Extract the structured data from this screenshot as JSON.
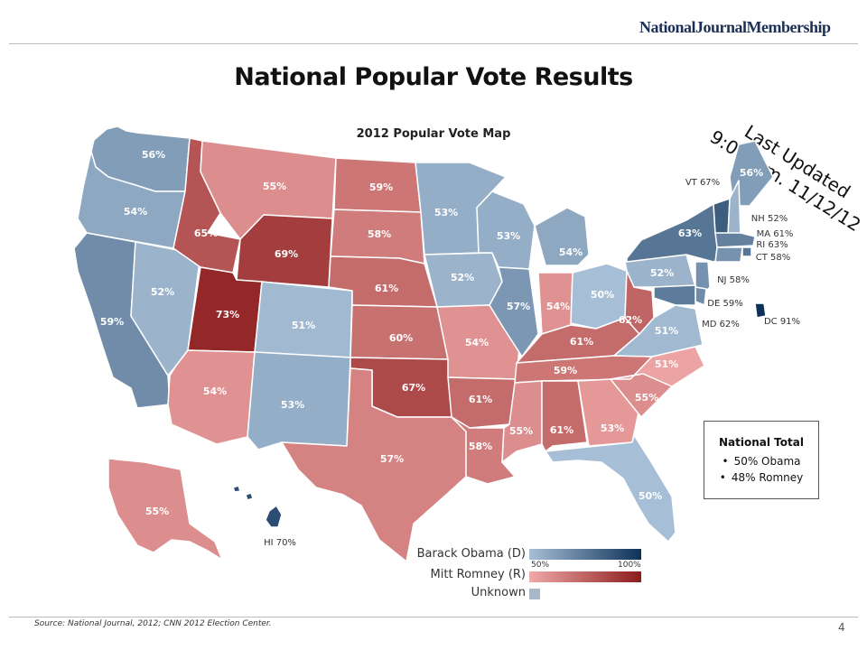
{
  "brand": "NationalJournalMembership",
  "title": "National Popular Vote Results",
  "subtitle": "2012 Popular Vote Map",
  "last_updated": {
    "line1": "Last Updated",
    "line2": "9:00 a.m. 11/12/12"
  },
  "national_total": {
    "heading": "National Total",
    "items": [
      "50% Obama",
      "48% Romney"
    ]
  },
  "legend": {
    "obama": "Barack Obama (D)",
    "romney": "Mitt Romney (R)",
    "unknown": "Unknown",
    "scale_min": "50%",
    "scale_max": "100%"
  },
  "colors": {
    "dem_light": "#a7bfd6",
    "dem_dark": "#0d3158",
    "rep_light": "#f0a9a9",
    "rep_dark": "#8c1c1c",
    "unknown": "#a9b8c9"
  },
  "states": [
    {
      "id": "WA",
      "party": "D",
      "pct": 56,
      "label": "56%"
    },
    {
      "id": "OR",
      "party": "D",
      "pct": 54,
      "label": "54%"
    },
    {
      "id": "CA",
      "party": "D",
      "pct": 59,
      "label": "59%"
    },
    {
      "id": "NV",
      "party": "D",
      "pct": 52,
      "label": "52%"
    },
    {
      "id": "ID",
      "party": "R",
      "pct": 65,
      "label": "65%"
    },
    {
      "id": "MT",
      "party": "R",
      "pct": 55,
      "label": "55%"
    },
    {
      "id": "WY",
      "party": "R",
      "pct": 69,
      "label": "69%"
    },
    {
      "id": "UT",
      "party": "R",
      "pct": 73,
      "label": "73%"
    },
    {
      "id": "AZ",
      "party": "R",
      "pct": 54,
      "label": "54%"
    },
    {
      "id": "CO",
      "party": "D",
      "pct": 51,
      "label": "51%"
    },
    {
      "id": "NM",
      "party": "D",
      "pct": 53,
      "label": "53%"
    },
    {
      "id": "ND",
      "party": "R",
      "pct": 59,
      "label": "59%"
    },
    {
      "id": "SD",
      "party": "R",
      "pct": 58,
      "label": "58%"
    },
    {
      "id": "NE",
      "party": "R",
      "pct": 61,
      "label": "61%"
    },
    {
      "id": "KS",
      "party": "R",
      "pct": 60,
      "label": "60%"
    },
    {
      "id": "OK",
      "party": "R",
      "pct": 67,
      "label": "67%"
    },
    {
      "id": "TX",
      "party": "R",
      "pct": 57,
      "label": "57%"
    },
    {
      "id": "MN",
      "party": "D",
      "pct": 53,
      "label": "53%"
    },
    {
      "id": "IA",
      "party": "D",
      "pct": 52,
      "label": "52%"
    },
    {
      "id": "MO",
      "party": "R",
      "pct": 54,
      "label": "54%"
    },
    {
      "id": "AR",
      "party": "R",
      "pct": 61,
      "label": "61%"
    },
    {
      "id": "LA",
      "party": "R",
      "pct": 58,
      "label": "58%"
    },
    {
      "id": "WI",
      "party": "D",
      "pct": 53,
      "label": "53%"
    },
    {
      "id": "IL",
      "party": "D",
      "pct": 57,
      "label": "57%"
    },
    {
      "id": "MI",
      "party": "D",
      "pct": 54,
      "label": "54%"
    },
    {
      "id": "IN",
      "party": "R",
      "pct": 54,
      "label": "54%"
    },
    {
      "id": "OH",
      "party": "D",
      "pct": 50,
      "label": "50%"
    },
    {
      "id": "KY",
      "party": "R",
      "pct": 61,
      "label": "61%"
    },
    {
      "id": "TN",
      "party": "R",
      "pct": 59,
      "label": "59%"
    },
    {
      "id": "MS",
      "party": "R",
      "pct": 55,
      "label": "55%"
    },
    {
      "id": "AL",
      "party": "R",
      "pct": 61,
      "label": "61%"
    },
    {
      "id": "GA",
      "party": "R",
      "pct": 53,
      "label": "53%"
    },
    {
      "id": "FL",
      "party": "D",
      "pct": 50,
      "label": "50%"
    },
    {
      "id": "SC",
      "party": "R",
      "pct": 55,
      "label": "55%"
    },
    {
      "id": "NC",
      "party": "R",
      "pct": 51,
      "label": "51%"
    },
    {
      "id": "VA",
      "party": "D",
      "pct": 51,
      "label": "51%"
    },
    {
      "id": "WV",
      "party": "R",
      "pct": 62,
      "label": "62%"
    },
    {
      "id": "PA",
      "party": "D",
      "pct": 52,
      "label": "52%"
    },
    {
      "id": "NY",
      "party": "D",
      "pct": 63,
      "label": "63%"
    },
    {
      "id": "ME",
      "party": "D",
      "pct": 56,
      "label": "56%"
    },
    {
      "id": "AK",
      "party": "R",
      "pct": 55,
      "label": "55%"
    },
    {
      "id": "HI",
      "party": "D",
      "pct": 70,
      "label": "HI 70%"
    },
    {
      "id": "VT",
      "party": "D",
      "pct": 67,
      "label": "VT 67%"
    },
    {
      "id": "NH",
      "party": "D",
      "pct": 52,
      "label": "NH 52%"
    },
    {
      "id": "MA",
      "party": "D",
      "pct": 61,
      "label": "MA 61%"
    },
    {
      "id": "RI",
      "party": "D",
      "pct": 63,
      "label": "RI 63%"
    },
    {
      "id": "CT",
      "party": "D",
      "pct": 58,
      "label": "CT 58%"
    },
    {
      "id": "NJ",
      "party": "D",
      "pct": 58,
      "label": "NJ 58%"
    },
    {
      "id": "DE",
      "party": "D",
      "pct": 59,
      "label": "DE 59%"
    },
    {
      "id": "MD",
      "party": "D",
      "pct": 62,
      "label": "MD 62%"
    },
    {
      "id": "DC",
      "party": "D",
      "pct": 91,
      "label": "DC 91%"
    }
  ],
  "source": "Source: National Journal, 2012; CNN 2012 Election Center.",
  "page_number": "4"
}
